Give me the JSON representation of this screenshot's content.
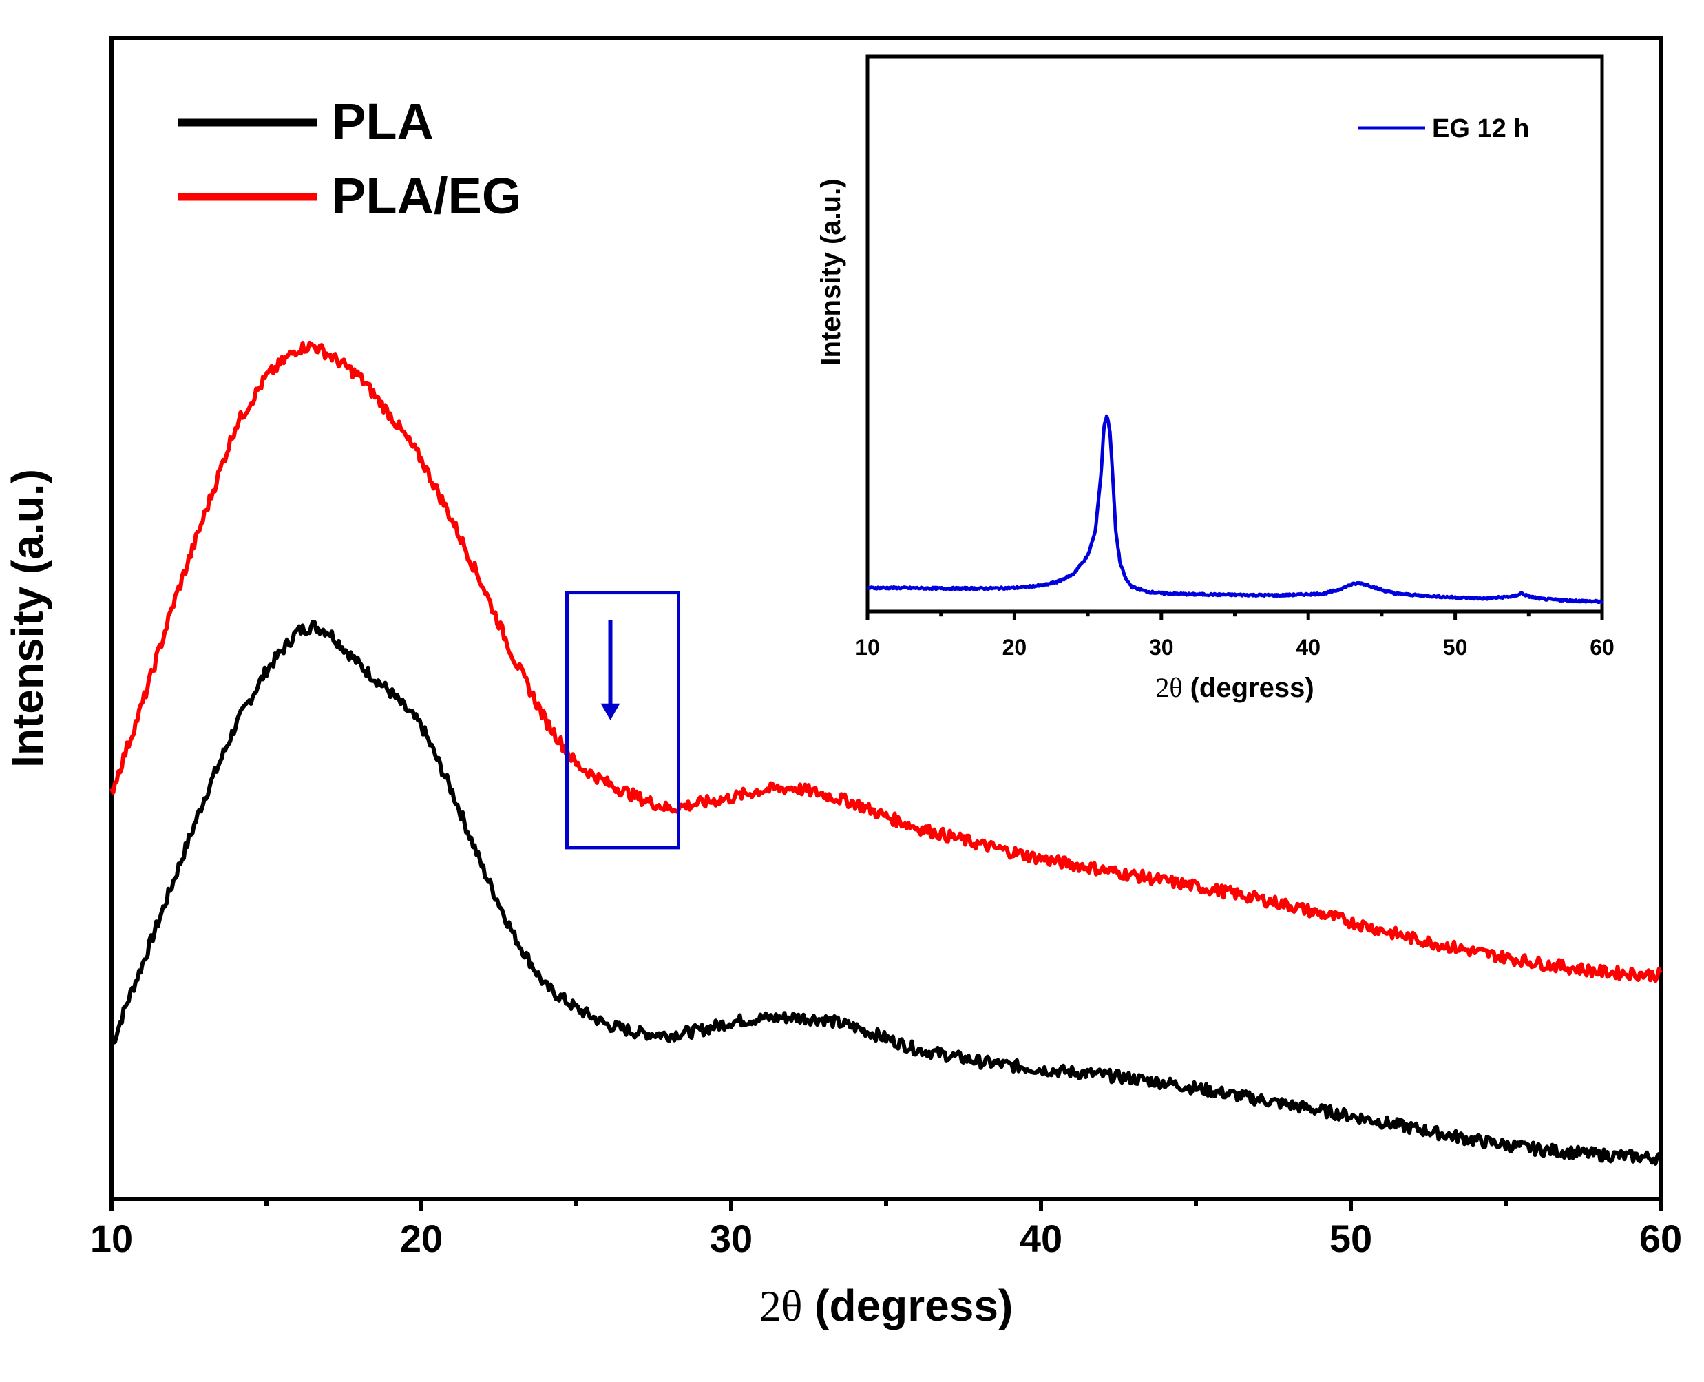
{
  "chart_data": [
    {
      "id": "main",
      "type": "line",
      "xlabel_symbol": "2θ",
      "xlabel_text": " (degress)",
      "ylabel": "Intensity (a.u.)",
      "xlim": [
        10,
        60
      ],
      "ylim": [
        0,
        100
      ],
      "xticks": [
        10,
        20,
        30,
        40,
        50,
        60
      ],
      "xticks_minor": [
        15,
        25,
        35,
        45,
        55
      ],
      "show_y_ticks": false,
      "grid": false,
      "legend_position": "top-left",
      "series": [
        {
          "name": "PLA",
          "color": "#000000",
          "x": [
            10,
            10.5,
            11,
            12,
            13,
            14,
            15,
            16,
            16.5,
            17,
            18,
            19,
            20,
            21,
            22,
            23,
            24,
            25,
            26,
            27,
            28,
            29,
            30,
            31,
            32,
            33,
            34,
            35,
            36,
            38,
            40,
            42,
            44,
            46,
            48,
            50,
            52,
            54,
            56,
            58,
            60
          ],
          "values": [
            13,
            17,
            20.5,
            28,
            35.5,
            42,
            47,
            50.5,
            51,
            50.5,
            47.5,
            45,
            42,
            36,
            29,
            23,
            18.5,
            16.5,
            15,
            14.3,
            14.1,
            14.5,
            15.3,
            15.6,
            15.7,
            15.5,
            14.8,
            13.8,
            12.8,
            11.7,
            11,
            10.5,
            9.8,
            8.8,
            7.8,
            6.8,
            5.7,
            4.6,
            3.8,
            3.3,
            3
          ]
        },
        {
          "name": "PLA/EG",
          "color": "#ff0000",
          "x": [
            10,
            11,
            12,
            13,
            14,
            15,
            16,
            16.5,
            17,
            18,
            19,
            20,
            21,
            22,
            23,
            24,
            25,
            26,
            27,
            28,
            29,
            30,
            31,
            32,
            33,
            34,
            35,
            36,
            38,
            40,
            42,
            44,
            46,
            48,
            50,
            52,
            54,
            56,
            58,
            60
          ],
          "values": [
            36,
            44,
            53,
            61,
            69,
            73.5,
            76,
            76.3,
            75.5,
            73.5,
            70,
            66,
            60.5,
            54.5,
            48,
            42.5,
            38.5,
            36.8,
            35.5,
            34.5,
            35,
            35.5,
            36.2,
            36.4,
            35.8,
            35,
            33.8,
            32.8,
            31.3,
            30,
            29,
            28,
            27,
            25.8,
            24.3,
            22.8,
            21.6,
            20.6,
            19.8,
            19.5
          ]
        }
      ],
      "highlight_box": {
        "x_range": [
          24.7,
          28.3
        ],
        "y_range": [
          31,
          54
        ],
        "color": "#0000cc",
        "arrow_from": [
          26.1,
          51.5
        ],
        "arrow_to": [
          26.1,
          42.5
        ]
      }
    },
    {
      "id": "inset",
      "type": "line",
      "xlabel_symbol": "2θ",
      "xlabel_text": " (degress)",
      "ylabel": "Intensity (a.u.)",
      "xlim": [
        10,
        60
      ],
      "ylim": [
        0,
        100
      ],
      "xticks": [
        10,
        20,
        30,
        40,
        50,
        60
      ],
      "xticks_minor": [
        15,
        25,
        35,
        45,
        55
      ],
      "show_y_ticks": false,
      "grid": false,
      "legend_position": "top-right",
      "series": [
        {
          "name": "EG 12 h",
          "color": "#0000dd",
          "x": [
            10,
            12,
            15,
            18,
            20,
            22,
            23,
            24,
            25,
            25.5,
            25.9,
            26.1,
            26.3,
            26.5,
            26.7,
            26.9,
            27.2,
            27.6,
            28,
            29,
            30,
            32,
            35,
            38,
            41,
            42,
            43,
            43.5,
            44,
            45,
            46,
            48,
            50,
            52,
            54,
            54.5,
            55,
            56,
            58,
            60
          ],
          "values": [
            3.4,
            3.4,
            3.3,
            3.3,
            3.4,
            3.9,
            4.6,
            6,
            9.5,
            14,
            25,
            34,
            36,
            33,
            24,
            14,
            8,
            5,
            3.6,
            2.7,
            2.4,
            2.2,
            2.1,
            2,
            2.3,
            3,
            4.1,
            4.3,
            4,
            3,
            2.3,
            1.9,
            1.6,
            1.4,
            1.8,
            2.4,
            1.8,
            1.3,
            1,
            0.8
          ]
        }
      ]
    }
  ]
}
